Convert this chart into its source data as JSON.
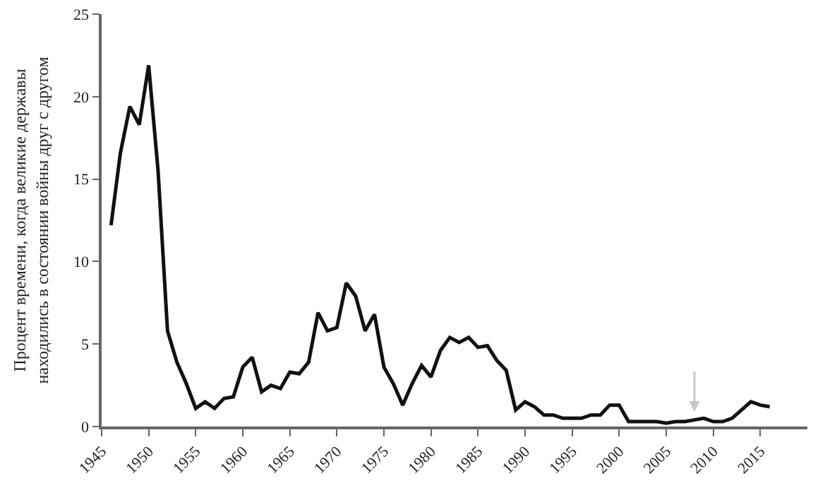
{
  "chart_data": {
    "type": "line",
    "ylabel": "Процент времени, когда великие державы\nнаходились в состоянии войны друг с другом",
    "x": [
      1946,
      1947,
      1948,
      1949,
      1950,
      1951,
      1952,
      1953,
      1954,
      1955,
      1956,
      1957,
      1958,
      1959,
      1960,
      1961,
      1962,
      1963,
      1964,
      1965,
      1966,
      1967,
      1968,
      1969,
      1970,
      1971,
      1972,
      1973,
      1974,
      1975,
      1976,
      1977,
      1978,
      1979,
      1980,
      1981,
      1982,
      1983,
      1984,
      1985,
      1986,
      1987,
      1988,
      1989,
      1990,
      1991,
      1992,
      1993,
      1994,
      1995,
      1996,
      1997,
      1998,
      1999,
      2000,
      2001,
      2002,
      2003,
      2004,
      2005,
      2006,
      2007,
      2008,
      2009,
      2010,
      2011,
      2012,
      2013,
      2014,
      2015,
      2016
    ],
    "series": [
      {
        "color": "#111111",
        "values": [
          12.2,
          16.6,
          19.4,
          18.3,
          21.9,
          15.5,
          5.8,
          3.9,
          2.6,
          1.1,
          1.5,
          1.1,
          1.7,
          1.8,
          3.6,
          4.2,
          2.1,
          2.5,
          2.3,
          3.3,
          3.2,
          3.9,
          6.9,
          5.8,
          6.0,
          8.7,
          7.9,
          5.8,
          6.8,
          3.6,
          2.6,
          1.3,
          2.6,
          3.7,
          3.0,
          4.6,
          5.4,
          5.1,
          5.4,
          4.8,
          4.9,
          4.0,
          3.4,
          1.0,
          1.5,
          1.2,
          0.7,
          0.7,
          0.5,
          0.5,
          0.5,
          0.7,
          0.7,
          1.3,
          1.3,
          0.3,
          0.3,
          0.3,
          0.3,
          0.2,
          0.3,
          0.3,
          0.4,
          0.5,
          0.3,
          0.3,
          0.5,
          1.0,
          1.5,
          1.3,
          1.2
        ]
      }
    ],
    "xlim": [
      1945,
      2020
    ],
    "xticks": [
      1945,
      1950,
      1955,
      1960,
      1965,
      1970,
      1975,
      1980,
      1985,
      1990,
      1995,
      2000,
      2005,
      2010,
      2015
    ],
    "ylim": [
      0,
      25
    ],
    "yticks": [
      0,
      5,
      10,
      15,
      20,
      25
    ],
    "marker": "none",
    "line_style": "solid"
  }
}
